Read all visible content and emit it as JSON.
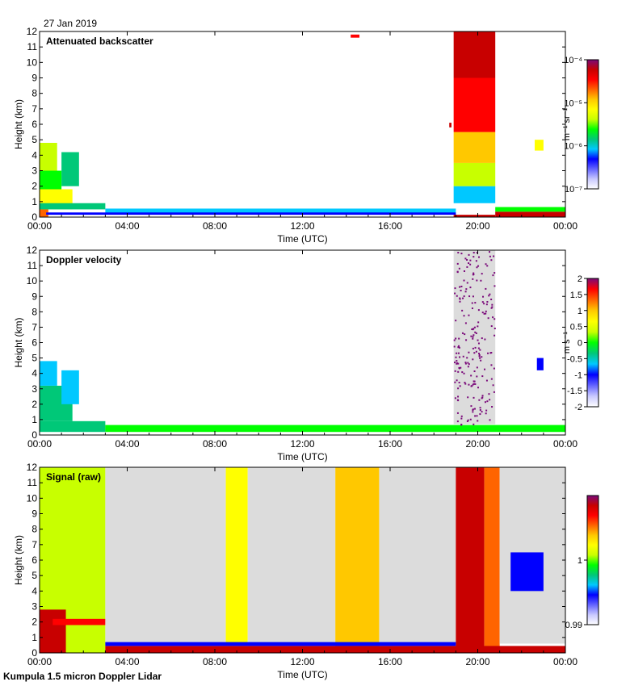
{
  "date_label": "27 Jan 2019",
  "footer_label": "Kumpula 1.5 micron Doppler Lidar",
  "colors": {
    "background": "#ffffff",
    "no_data": "#dcdcdc",
    "low_purple": "#7a0a7a"
  },
  "colormap": [
    "#ffffff",
    "#c8c8ff",
    "#6464ff",
    "#0000ff",
    "#00c8ff",
    "#00c878",
    "#00ff00",
    "#c8ff00",
    "#ffff00",
    "#ffc800",
    "#ff6400",
    "#ff0000",
    "#c80000",
    "#7a0a7a"
  ],
  "chart_data": [
    {
      "type": "heatmap",
      "title": "Attenuated backscatter",
      "xlabel": "Time (UTC)",
      "ylabel": "Height (km)",
      "x_ticks": [
        "00:00",
        "04:00",
        "08:00",
        "12:00",
        "16:00",
        "20:00",
        "00:00"
      ],
      "x_range_hours": [
        0,
        24
      ],
      "y_ticks": [
        "0",
        "1",
        "2",
        "3",
        "4",
        "5",
        "6",
        "7",
        "8",
        "9",
        "10",
        "11",
        "12"
      ],
      "ylim": [
        0,
        12
      ],
      "colorbar": {
        "unit": "m⁻¹ sr⁻¹",
        "scale": "log",
        "range": [
          1e-07,
          0.0001
        ],
        "ticks": [
          "10⁻⁴",
          "10⁻⁵",
          "10⁻⁶",
          "10⁻⁷"
        ]
      },
      "regions": [
        {
          "t0": 0.0,
          "t1": 0.4,
          "h0": 0.0,
          "h1": 2.5,
          "level": 0.75
        },
        {
          "t0": 0.0,
          "t1": 1.5,
          "h0": 0.5,
          "h1": 1.8,
          "level": 0.6
        },
        {
          "t0": 0.0,
          "t1": 3.0,
          "h0": 0.5,
          "h1": 0.9,
          "level": 0.35
        },
        {
          "t0": 0.0,
          "t1": 1.0,
          "h0": 1.8,
          "h1": 3.0,
          "level": 0.45
        },
        {
          "t0": 0.0,
          "t1": 0.8,
          "h0": 3.0,
          "h1": 4.8,
          "level": 0.5
        },
        {
          "t0": 1.0,
          "t1": 1.8,
          "h0": 2.0,
          "h1": 4.2,
          "level": 0.4
        },
        {
          "t0": 3.0,
          "t1": 19.0,
          "h0": 0.25,
          "h1": 0.55,
          "level": 0.3
        },
        {
          "t0": 0.3,
          "t1": 19.0,
          "h0": 0.15,
          "h1": 0.3,
          "level": 0.25
        },
        {
          "t0": 18.9,
          "t1": 20.8,
          "h0": 0.9,
          "h1": 2.0,
          "level": 0.3
        },
        {
          "t0": 18.9,
          "t1": 20.8,
          "h0": 2.0,
          "h1": 3.5,
          "level": 0.55
        },
        {
          "t0": 18.9,
          "t1": 20.8,
          "h0": 3.5,
          "h1": 5.5,
          "level": 0.72
        },
        {
          "t0": 18.9,
          "t1": 20.8,
          "h0": 5.5,
          "h1": 9.0,
          "level": 0.85
        },
        {
          "t0": 18.9,
          "t1": 20.8,
          "h0": 9.0,
          "h1": 12.0,
          "level": 0.9
        },
        {
          "t0": 20.8,
          "t1": 24.0,
          "h0": 0.0,
          "h1": 0.35,
          "level": 0.95
        },
        {
          "t0": 20.8,
          "t1": 24.0,
          "h0": 0.35,
          "h1": 0.65,
          "level": 0.45
        },
        {
          "t0": 18.9,
          "t1": 20.8,
          "h0": 0.0,
          "h1": 0.15,
          "level": 0.95
        },
        {
          "t0": 22.6,
          "t1": 23.0,
          "h0": 4.3,
          "h1": 5.0,
          "level": 0.6
        },
        {
          "t0": 14.2,
          "t1": 14.6,
          "h0": 11.6,
          "h1": 11.8,
          "level": 0.85
        },
        {
          "t0": 18.7,
          "t1": 18.8,
          "h0": 5.8,
          "h1": 6.1,
          "level": 0.9
        }
      ]
    },
    {
      "type": "heatmap",
      "title": "Doppler velocity",
      "xlabel": "Time (UTC)",
      "ylabel": "Height (km)",
      "x_ticks": [
        "00:00",
        "04:00",
        "08:00",
        "12:00",
        "16:00",
        "20:00",
        "00:00"
      ],
      "x_range_hours": [
        0,
        24
      ],
      "y_ticks": [
        "0",
        "1",
        "2",
        "3",
        "4",
        "5",
        "6",
        "7",
        "8",
        "9",
        "10",
        "11",
        "12"
      ],
      "ylim": [
        0,
        12
      ],
      "colorbar": {
        "unit": "m s⁻¹",
        "scale": "linear",
        "range": [
          -2,
          2
        ],
        "ticks": [
          "2",
          "1.5",
          "1",
          "0.5",
          "0",
          "-0.5",
          "-1",
          "-1.5",
          "-2"
        ]
      },
      "regions": [
        {
          "t0": 0.0,
          "t1": 3.0,
          "h0": 0.2,
          "h1": 0.9,
          "level": 0.45
        },
        {
          "t0": 0.0,
          "t1": 1.5,
          "h0": 0.9,
          "h1": 3.2,
          "level": 0.38
        },
        {
          "t0": 0.0,
          "t1": 0.8,
          "h0": 3.2,
          "h1": 4.8,
          "level": 0.35
        },
        {
          "t0": 1.0,
          "t1": 1.8,
          "h0": 2.0,
          "h1": 4.2,
          "level": 0.3
        },
        {
          "t0": 3.0,
          "t1": 24.0,
          "h0": 0.2,
          "h1": 0.65,
          "level": 0.47
        },
        {
          "t0": 22.7,
          "t1": 23.0,
          "h0": 4.2,
          "h1": 5.0,
          "level": 0.22
        }
      ],
      "masked_regions": [
        {
          "t0": 18.9,
          "t1": 20.8,
          "h0": 0.7,
          "h1": 12.0,
          "note": "noisy, mostly gray with scattered purple points"
        }
      ]
    },
    {
      "type": "heatmap",
      "title": "Signal (raw)",
      "xlabel": "Time (UTC)",
      "ylabel": "Height (km)",
      "x_ticks": [
        "00:00",
        "04:00",
        "08:00",
        "12:00",
        "16:00",
        "20:00",
        "00:00"
      ],
      "x_range_hours": [
        0,
        24
      ],
      "y_ticks": [
        "0",
        "1",
        "2",
        "3",
        "4",
        "5",
        "6",
        "7",
        "8",
        "9",
        "10",
        "11",
        "12"
      ],
      "ylim": [
        0,
        12
      ],
      "colorbar": {
        "unit": "",
        "scale": "linear",
        "range": [
          0.99,
          1.01
        ],
        "ticks": [
          "1",
          "0.99"
        ]
      },
      "regions": [
        {
          "t0": 0.0,
          "t1": 3.0,
          "h0": 0.0,
          "h1": 12.0,
          "level": 0.5
        },
        {
          "t0": 0.0,
          "t1": 1.2,
          "h0": 0.0,
          "h1": 2.8,
          "level": 0.95
        },
        {
          "t0": 0.6,
          "t1": 3.0,
          "h0": 1.8,
          "h1": 2.2,
          "level": 0.85
        },
        {
          "t0": 3.0,
          "t1": 8.5,
          "h0": 0.7,
          "h1": 12.0,
          "level": -1
        },
        {
          "t0": 8.5,
          "t1": 9.5,
          "h0": 0.5,
          "h1": 12.0,
          "level": 0.65
        },
        {
          "t0": 9.5,
          "t1": 13.5,
          "h0": 0.6,
          "h1": 12.0,
          "level": -1
        },
        {
          "t0": 13.5,
          "t1": 15.5,
          "h0": 0.4,
          "h1": 12.0,
          "level": 0.7
        },
        {
          "t0": 15.5,
          "t1": 19.0,
          "h0": 0.6,
          "h1": 12.0,
          "level": -1
        },
        {
          "t0": 19.0,
          "t1": 20.3,
          "h0": 0.0,
          "h1": 12.0,
          "level": 0.95
        },
        {
          "t0": 20.3,
          "t1": 21.0,
          "h0": 0.0,
          "h1": 12.0,
          "level": 0.8
        },
        {
          "t0": 21.0,
          "t1": 24.0,
          "h0": 0.6,
          "h1": 12.0,
          "level": -1
        },
        {
          "t0": 3.0,
          "t1": 24.0,
          "h0": 0.0,
          "h1": 0.45,
          "level": 0.95
        },
        {
          "t0": 3.0,
          "t1": 19.0,
          "h0": 0.45,
          "h1": 0.7,
          "level": 0.2
        },
        {
          "t0": 21.5,
          "t1": 23.0,
          "h0": 4.0,
          "h1": 6.5,
          "level": 0.25
        }
      ]
    }
  ]
}
